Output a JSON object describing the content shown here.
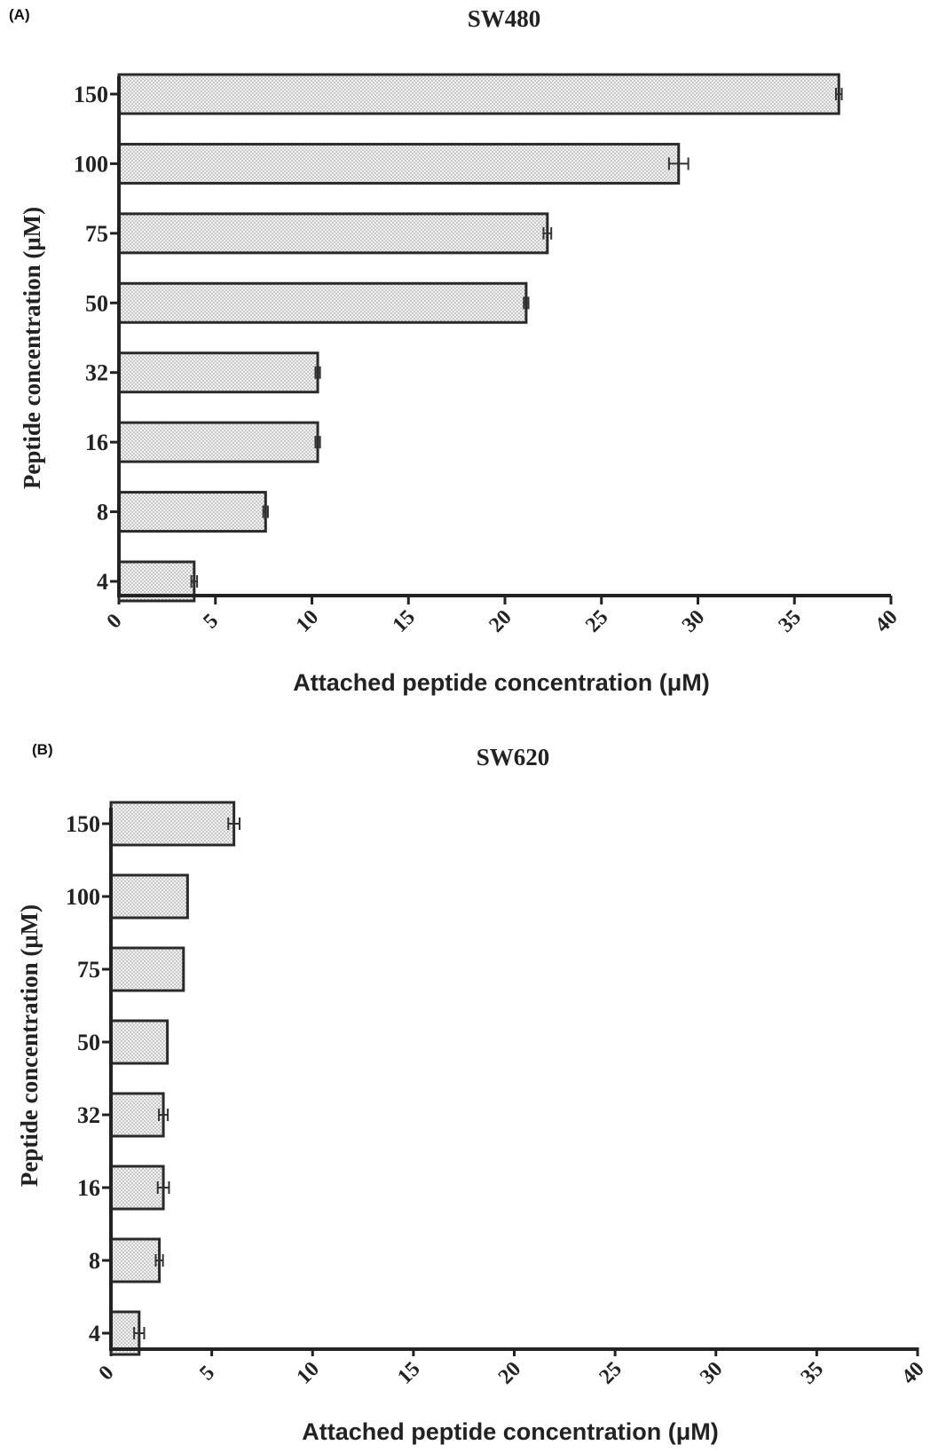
{
  "chart_data": [
    {
      "type": "bar",
      "orientation": "horizontal",
      "panel_label": "(A)",
      "title": "SW480",
      "ylabel": "Peptide concentration (μM)",
      "xlabel": "Attached peptide concentration (μM)",
      "categories": [
        "150",
        "100",
        "75",
        "50",
        "32",
        "16",
        "8",
        "4"
      ],
      "values": [
        37.3,
        29.0,
        22.2,
        21.1,
        10.3,
        10.3,
        7.6,
        3.9
      ],
      "errors": [
        0.15,
        0.5,
        0.2,
        0.12,
        0.12,
        0.12,
        0.12,
        0.15
      ],
      "xlim": [
        0,
        40
      ],
      "xticks": [
        "0",
        "5",
        "10",
        "15",
        "20",
        "25",
        "30",
        "35",
        "40"
      ],
      "grid": false,
      "legend": "none"
    },
    {
      "type": "bar",
      "orientation": "horizontal",
      "panel_label": "(B)",
      "title": "SW620",
      "ylabel": "Peptide concentration (μM)",
      "xlabel": "Attached peptide concentration (μM)",
      "categories": [
        "150",
        "100",
        "75",
        "50",
        "32",
        "16",
        "8",
        "4"
      ],
      "values": [
        6.1,
        3.8,
        3.6,
        2.8,
        2.6,
        2.6,
        2.4,
        1.4
      ],
      "errors": [
        0.28,
        0.0,
        0.0,
        0.0,
        0.22,
        0.28,
        0.18,
        0.25
      ],
      "xlim": [
        0,
        40
      ],
      "xticks": [
        "0",
        "5",
        "10",
        "15",
        "20",
        "25",
        "30",
        "35",
        "40"
      ],
      "grid": false,
      "legend": "none"
    }
  ]
}
